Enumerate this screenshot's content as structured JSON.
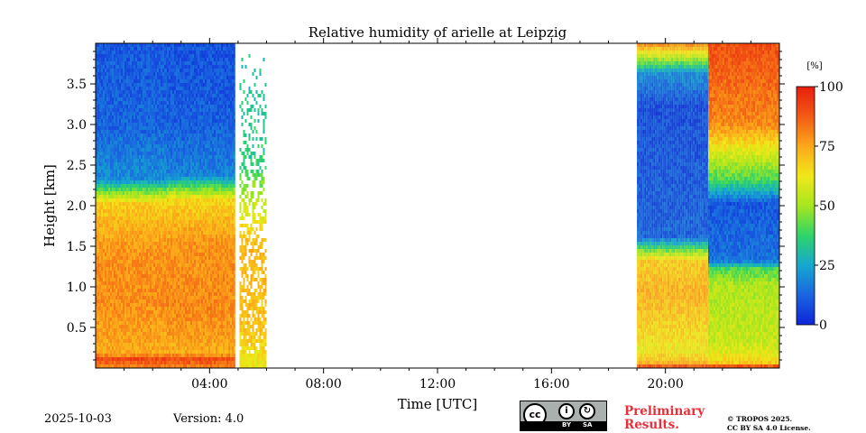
{
  "chart_data": {
    "type": "heatmap",
    "title": "Relative humidity of arielle at Leipzig",
    "xlabel": "Time [UTC]",
    "ylabel": "Height [km]",
    "xlim_hours": [
      0,
      24
    ],
    "ylim_km": [
      0,
      4.0
    ],
    "x_ticks": [
      {
        "hour": 4,
        "label": "04:00"
      },
      {
        "hour": 8,
        "label": "08:00"
      },
      {
        "hour": 12,
        "label": "12:00"
      },
      {
        "hour": 16,
        "label": "16:00"
      },
      {
        "hour": 20,
        "label": "20:00"
      }
    ],
    "y_ticks": [
      {
        "km": 0.5,
        "label": "0.5"
      },
      {
        "km": 1.0,
        "label": "1.0"
      },
      {
        "km": 1.5,
        "label": "1.5"
      },
      {
        "km": 2.0,
        "label": "2.0"
      },
      {
        "km": 2.5,
        "label": "2.5"
      },
      {
        "km": 3.0,
        "label": "3.0"
      },
      {
        "km": 3.5,
        "label": "3.5"
      }
    ],
    "colorbar": {
      "unit": "[%]",
      "range": [
        0,
        100
      ],
      "ticks": [
        {
          "value": 0,
          "label": "0"
        },
        {
          "value": 25,
          "label": "25"
        },
        {
          "value": 50,
          "label": "50"
        },
        {
          "value": 75,
          "label": "75"
        },
        {
          "value": 100,
          "label": "100"
        }
      ],
      "colormap": [
        "#0d24d8",
        "#1a66e0",
        "#15a8cf",
        "#2fd46a",
        "#a6e61e",
        "#f0e818",
        "#fca71a",
        "#f25a14",
        "#e81e0e"
      ]
    },
    "segments": [
      {
        "name": "night-early",
        "t_start": 0.0,
        "t_end": 2.5,
        "profile": [
          {
            "h": 0.0,
            "rh": 82
          },
          {
            "h": 0.1,
            "rh": 92
          },
          {
            "h": 0.15,
            "rh": 74
          },
          {
            "h": 0.8,
            "rh": 79
          },
          {
            "h": 1.4,
            "rh": 78
          },
          {
            "h": 2.0,
            "rh": 68
          },
          {
            "h": 2.15,
            "rh": 45
          },
          {
            "h": 2.3,
            "rh": 20
          },
          {
            "h": 3.0,
            "rh": 12
          },
          {
            "h": 4.0,
            "rh": 10
          }
        ]
      },
      {
        "name": "night-mid",
        "t_start": 2.5,
        "t_end": 4.9,
        "profile": [
          {
            "h": 0.0,
            "rh": 82
          },
          {
            "h": 0.1,
            "rh": 92
          },
          {
            "h": 0.15,
            "rh": 74
          },
          {
            "h": 0.7,
            "rh": 80
          },
          {
            "h": 1.5,
            "rh": 78
          },
          {
            "h": 2.05,
            "rh": 66
          },
          {
            "h": 2.2,
            "rh": 42
          },
          {
            "h": 2.35,
            "rh": 18
          },
          {
            "h": 3.0,
            "rh": 11
          },
          {
            "h": 4.0,
            "rh": 9
          }
        ]
      },
      {
        "name": "pre-sunrise-noisy",
        "t_start": 5.05,
        "t_end": 6.0,
        "max_height_km": 4.0,
        "profile": [
          {
            "h": 0.0,
            "rh": 62
          },
          {
            "h": 0.5,
            "rh": 70
          },
          {
            "h": 1.5,
            "rh": 72
          },
          {
            "h": 2.0,
            "rh": 55
          },
          {
            "h": 2.5,
            "rh": 35
          },
          {
            "h": 4.0,
            "rh": 30
          }
        ]
      },
      {
        "name": "evening-early",
        "t_start": 19.0,
        "t_end": 21.5,
        "profile": [
          {
            "h": 0.0,
            "rh": 88
          },
          {
            "h": 0.05,
            "rh": 70
          },
          {
            "h": 0.2,
            "rh": 62
          },
          {
            "h": 0.9,
            "rh": 73
          },
          {
            "h": 1.3,
            "rh": 68
          },
          {
            "h": 1.45,
            "rh": 40
          },
          {
            "h": 1.6,
            "rh": 12
          },
          {
            "h": 3.2,
            "rh": 8
          },
          {
            "h": 3.6,
            "rh": 20
          },
          {
            "h": 4.0,
            "rh": 85
          }
        ]
      },
      {
        "name": "evening-late",
        "t_start": 21.5,
        "t_end": 24.0,
        "profile": [
          {
            "h": 0.0,
            "rh": 88
          },
          {
            "h": 0.05,
            "rh": 66
          },
          {
            "h": 0.3,
            "rh": 55
          },
          {
            "h": 1.0,
            "rh": 52
          },
          {
            "h": 1.2,
            "rh": 40
          },
          {
            "h": 1.3,
            "rh": 15
          },
          {
            "h": 2.0,
            "rh": 10
          },
          {
            "h": 2.3,
            "rh": 40
          },
          {
            "h": 3.0,
            "rh": 80
          },
          {
            "h": 4.0,
            "rh": 90
          }
        ]
      }
    ]
  },
  "footer": {
    "date": "2025-10-03",
    "version": "Version: 4.0",
    "license_badge": {
      "cc": "cc",
      "by": "BY",
      "sa": "SA"
    },
    "preliminary_line1": "Preliminary",
    "preliminary_line2": "Results.",
    "copyright_line1": "© TROPOS 2025.",
    "copyright_line2": "CC BY SA 4.0 License."
  }
}
